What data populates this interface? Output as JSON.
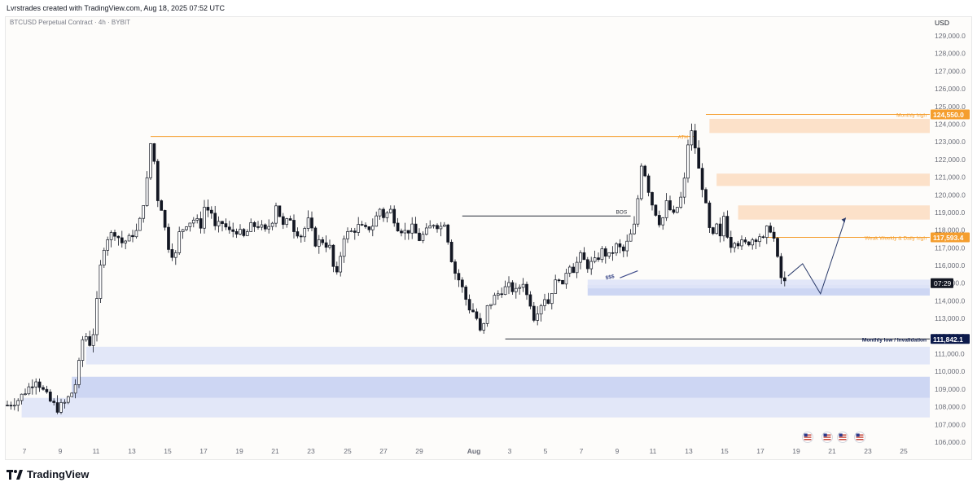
{
  "header": {
    "created_text": "Lvrstrades created with TradingView.com, Aug 18, 2025 07:52 UTC"
  },
  "chart_meta": {
    "symbol": "BTCUSD Perpetual Contract · 4h · BYBIT",
    "currency": "USD",
    "countdown": "07:29"
  },
  "footer": {
    "logo_text": "TradingView"
  },
  "colors": {
    "up": "#26a69a",
    "down": "#131722",
    "candle": "#131722",
    "orange_line": "#f59e2e",
    "orange_zone": "#fbdcc0",
    "blue_zone": "#c8d1f2",
    "blue_zone_light": "#dfe4f7",
    "navy_label": "#0c1a4b"
  },
  "chart_data": {
    "type": "candlestick",
    "timeframe": "4h",
    "ylim": [
      105000,
      129800
    ],
    "y_ticks": [
      106000,
      107000,
      108000,
      109000,
      110000,
      111000,
      112000,
      113000,
      114000,
      115000,
      116000,
      117000,
      118000,
      119000,
      120000,
      121000,
      122000,
      123000,
      124000,
      125000,
      126000,
      127000,
      128000,
      129000
    ],
    "x_ticks": [
      "7",
      "9",
      "11",
      "13",
      "15",
      "17",
      "19",
      "21",
      "23",
      "25",
      "27",
      "29",
      "Aug",
      "3",
      "5",
      "7",
      "9",
      "11",
      "13",
      "15",
      "17",
      "19",
      "21",
      "23",
      "25"
    ],
    "price_path": [
      [
        0,
        108100
      ],
      [
        3,
        108400
      ],
      [
        6,
        109100
      ],
      [
        8,
        109600
      ],
      [
        10,
        108900
      ],
      [
        12,
        108300
      ],
      [
        14,
        107900
      ],
      [
        16,
        108200
      ],
      [
        18,
        108800
      ],
      [
        19,
        109300
      ],
      [
        20,
        110400
      ],
      [
        21,
        111800
      ],
      [
        22,
        112000
      ],
      [
        23,
        111600
      ],
      [
        24,
        112200
      ],
      [
        25,
        113900
      ],
      [
        26,
        115900
      ],
      [
        27,
        117100
      ],
      [
        28,
        117600
      ],
      [
        30,
        117900
      ],
      [
        32,
        117300
      ],
      [
        34,
        117500
      ],
      [
        35,
        117800
      ],
      [
        36,
        117900
      ],
      [
        37,
        118500
      ],
      [
        38,
        119600
      ],
      [
        39,
        120800
      ],
      [
        40,
        122900
      ],
      [
        41,
        121900
      ],
      [
        42,
        119800
      ],
      [
        43,
        119300
      ],
      [
        44,
        118100
      ],
      [
        45,
        117100
      ],
      [
        46,
        116700
      ],
      [
        47,
        116600
      ],
      [
        48,
        117800
      ],
      [
        50,
        118400
      ],
      [
        52,
        118600
      ],
      [
        54,
        118300
      ],
      [
        55,
        119300
      ],
      [
        57,
        119000
      ],
      [
        58,
        118100
      ],
      [
        60,
        118400
      ],
      [
        62,
        117900
      ],
      [
        64,
        118000
      ],
      [
        66,
        117600
      ],
      [
        68,
        118200
      ],
      [
        70,
        118300
      ],
      [
        72,
        117900
      ],
      [
        74,
        118600
      ],
      [
        75,
        119500
      ],
      [
        77,
        118200
      ],
      [
        79,
        118700
      ],
      [
        80,
        118100
      ],
      [
        82,
        117700
      ],
      [
        84,
        118500
      ],
      [
        86,
        117300
      ],
      [
        88,
        117400
      ],
      [
        90,
        117000
      ],
      [
        91,
        115900
      ],
      [
        92,
        115400
      ],
      [
        93,
        116600
      ],
      [
        94,
        117700
      ],
      [
        96,
        117900
      ],
      [
        98,
        118200
      ],
      [
        100,
        118000
      ],
      [
        102,
        118300
      ],
      [
        104,
        119200
      ],
      [
        105,
        118800
      ],
      [
        107,
        119100
      ],
      [
        109,
        118200
      ],
      [
        111,
        117900
      ],
      [
        113,
        118100
      ],
      [
        115,
        117500
      ],
      [
        117,
        117900
      ],
      [
        119,
        118400
      ],
      [
        121,
        118200
      ],
      [
        122,
        118500
      ],
      [
        123,
        117500
      ],
      [
        124,
        116400
      ],
      [
        125,
        115600
      ],
      [
        126,
        115200
      ],
      [
        127,
        114700
      ],
      [
        128,
        114100
      ],
      [
        129,
        113600
      ],
      [
        130,
        113400
      ],
      [
        131,
        113000
      ],
      [
        132,
        112200
      ],
      [
        133,
        112600
      ],
      [
        134,
        113600
      ],
      [
        136,
        114200
      ],
      [
        138,
        114600
      ],
      [
        140,
        114800
      ],
      [
        142,
        114500
      ],
      [
        144,
        115100
      ],
      [
        145,
        114300
      ],
      [
        146,
        113900
      ],
      [
        147,
        113100
      ],
      [
        148,
        113500
      ],
      [
        150,
        114200
      ],
      [
        151,
        113900
      ],
      [
        152,
        114600
      ],
      [
        153,
        115000
      ],
      [
        154,
        115400
      ],
      [
        155,
        114700
      ],
      [
        156,
        115700
      ],
      [
        157,
        116100
      ],
      [
        158,
        115800
      ],
      [
        160,
        116500
      ],
      [
        162,
        116000
      ],
      [
        164,
        116200
      ],
      [
        166,
        116800
      ],
      [
        168,
        116500
      ],
      [
        170,
        117100
      ],
      [
        172,
        116800
      ],
      [
        174,
        117700
      ],
      [
        175,
        118200
      ],
      [
        176,
        119800
      ],
      [
        177,
        121800
      ],
      [
        178,
        121200
      ],
      [
        179,
        120300
      ],
      [
        180,
        119500
      ],
      [
        181,
        119000
      ],
      [
        182,
        118500
      ],
      [
        183,
        118700
      ],
      [
        184,
        119500
      ],
      [
        186,
        118800
      ],
      [
        188,
        119800
      ],
      [
        189,
        120800
      ],
      [
        190,
        122900
      ],
      [
        191,
        123500
      ],
      [
        192,
        122700
      ],
      [
        193,
        121400
      ],
      [
        194,
        120500
      ],
      [
        195,
        119300
      ],
      [
        196,
        118000
      ],
      [
        197,
        117600
      ],
      [
        198,
        118200
      ],
      [
        199,
        117500
      ],
      [
        200,
        118800
      ],
      [
        201,
        117800
      ],
      [
        202,
        117200
      ],
      [
        203,
        117500
      ],
      [
        204,
        117300
      ],
      [
        206,
        117200
      ],
      [
        208,
        117500
      ],
      [
        210,
        117700
      ],
      [
        211,
        117400
      ],
      [
        212,
        118000
      ],
      [
        213,
        118100
      ],
      [
        214,
        117500
      ],
      [
        215,
        116300
      ],
      [
        216,
        115300
      ],
      [
        217,
        115000
      ]
    ],
    "annotations": [
      {
        "label": "ATH"
      },
      {
        "label": "BOS"
      },
      {
        "label": "$$$"
      },
      {
        "label": "Monthly high"
      },
      {
        "label": "Weak Weekly & Daily high"
      },
      {
        "label": "Monthly low / Invalidation"
      }
    ],
    "price_labels": [
      {
        "text": "124,550.0",
        "value": 124550,
        "style": "orange"
      },
      {
        "text": "117,593.4",
        "value": 117593.4,
        "style": "orange"
      },
      {
        "text": "111,842.1",
        "value": 111842.1,
        "style": "navy"
      }
    ],
    "zones": [
      {
        "name": "supply-zone-top",
        "low": 123500,
        "high": 124300,
        "color": "orange"
      },
      {
        "name": "supply-zone-mid",
        "low": 120500,
        "high": 121200,
        "color": "orange"
      },
      {
        "name": "supply-zone-low",
        "low": 118600,
        "high": 119400,
        "color": "orange"
      },
      {
        "name": "demand-zone-recent",
        "low": 114300,
        "high": 114900,
        "color": "blue"
      },
      {
        "name": "demand-zone-recent-light",
        "low": 114700,
        "high": 115200,
        "color": "blue-light"
      },
      {
        "name": "demand-zone-mid",
        "low": 110400,
        "high": 111400,
        "color": "blue-light"
      },
      {
        "name": "demand-zone-lower",
        "low": 108500,
        "high": 109700,
        "color": "blue"
      },
      {
        "name": "demand-zone-lower-light",
        "low": 107400,
        "high": 108500,
        "color": "blue-light"
      }
    ],
    "levels": [
      {
        "name": "ath-line",
        "value": 123300
      },
      {
        "name": "bos-line",
        "value": 118800
      },
      {
        "name": "monthly-high-line",
        "value": 124550
      },
      {
        "name": "weak-high-line",
        "value": 117593.4
      },
      {
        "name": "monthly-low-line",
        "value": 111842.1
      }
    ],
    "projection": [
      [
        0,
        115400
      ],
      [
        1,
        116100
      ],
      [
        2,
        114400
      ],
      [
        3,
        118700
      ]
    ]
  }
}
